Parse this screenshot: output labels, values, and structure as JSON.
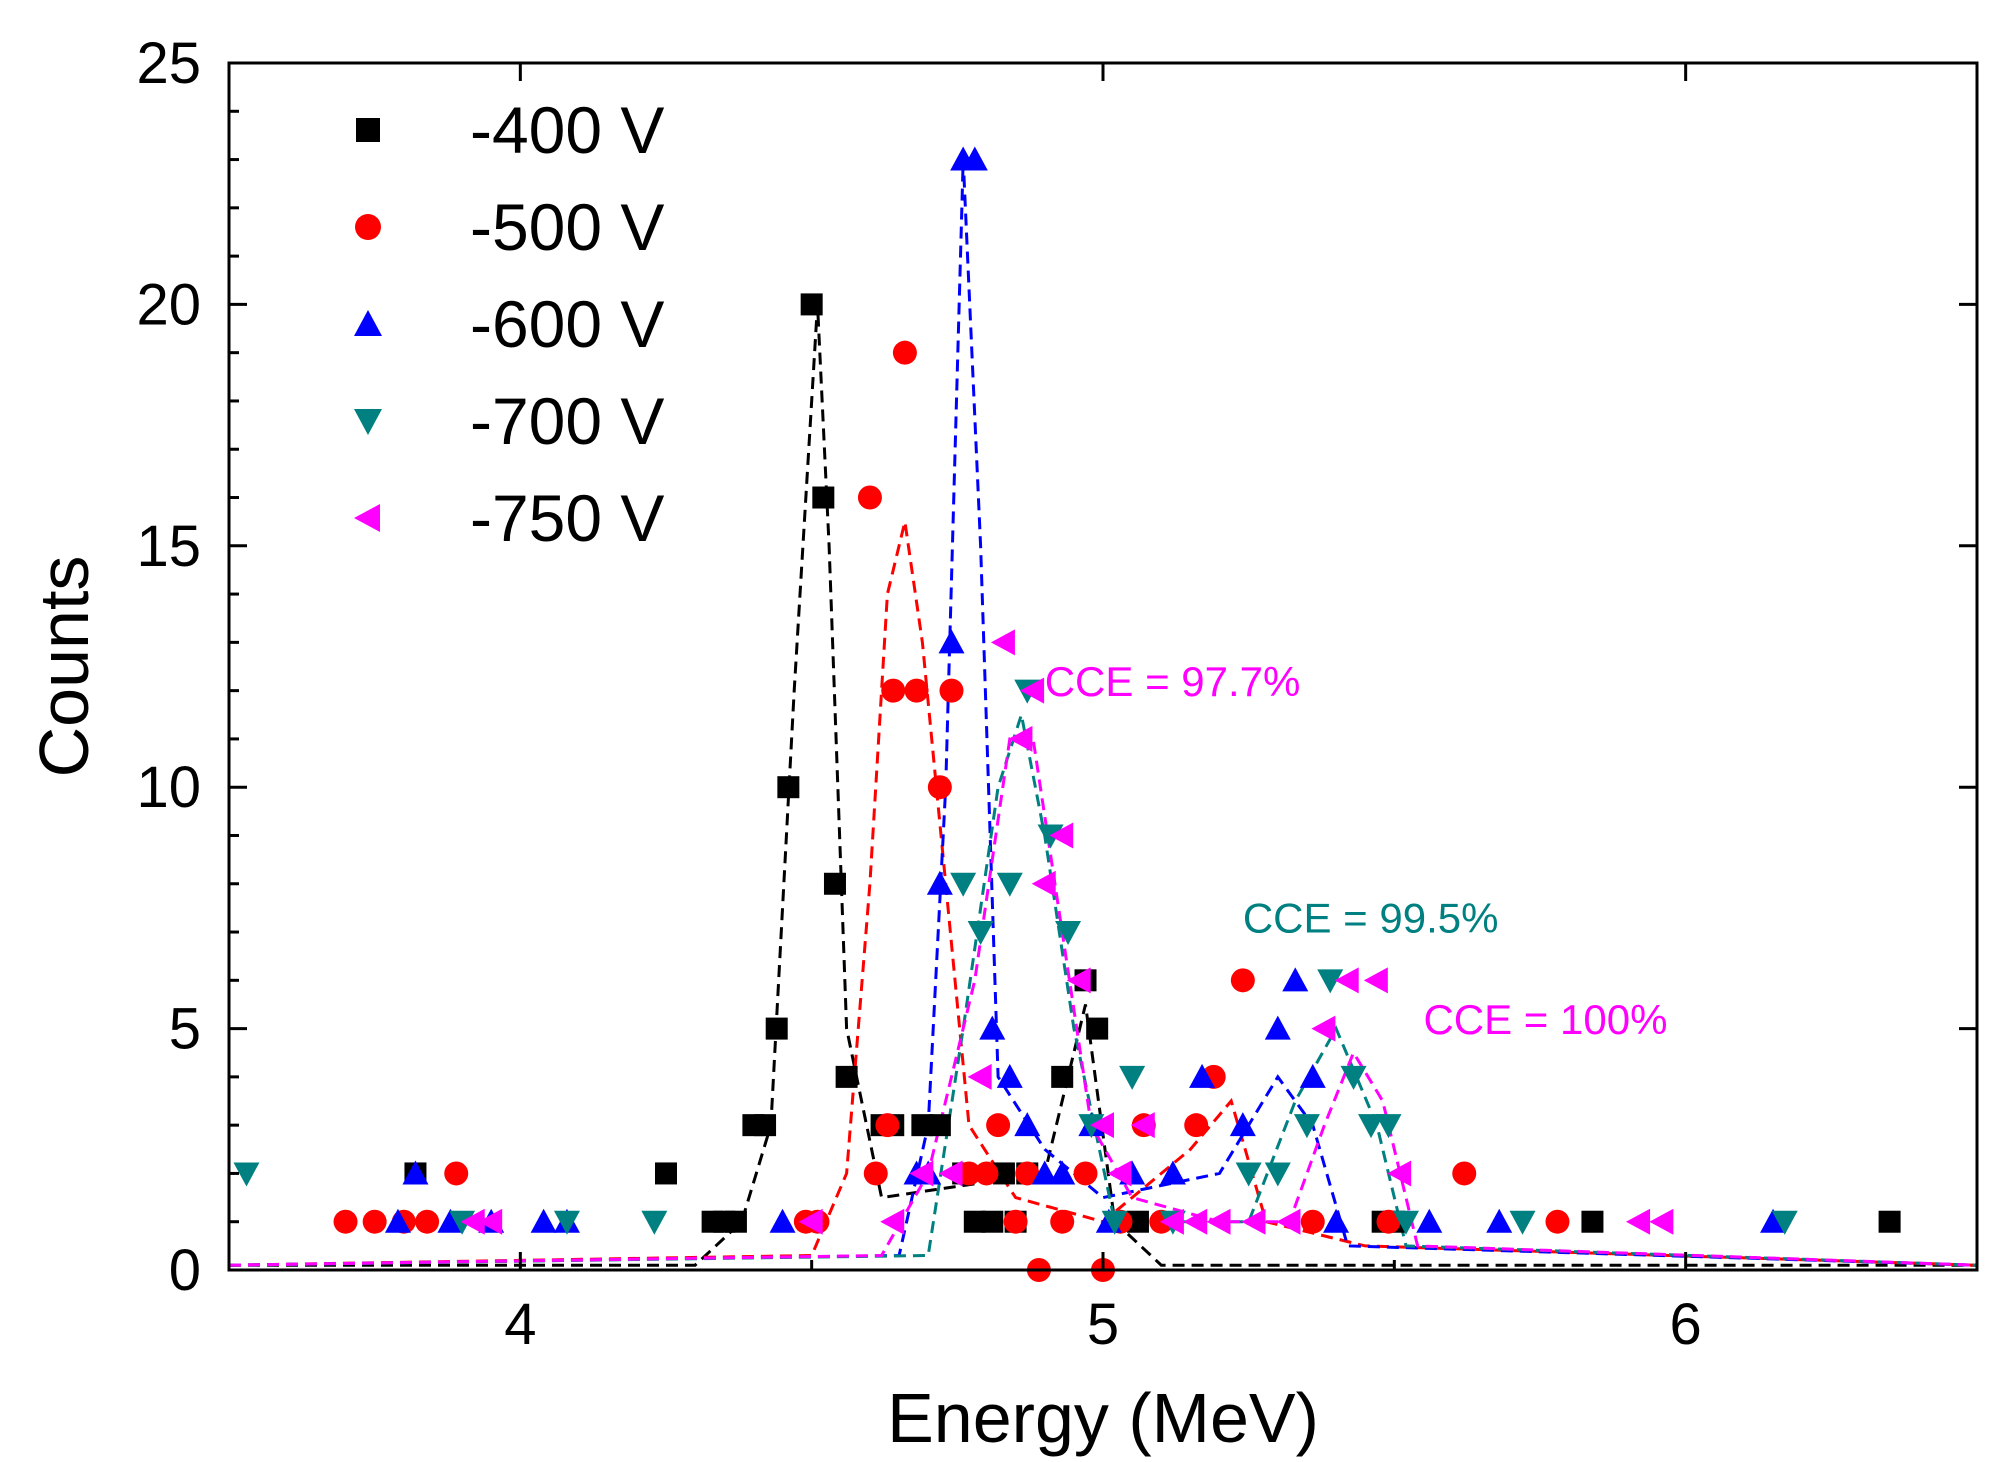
{
  "chart_data": {
    "type": "scatter",
    "title": "",
    "xlabel": "Energy (MeV)",
    "ylabel": "Counts",
    "xlim": [
      3.5,
      6.5
    ],
    "ylim": [
      0,
      25
    ],
    "xticks": [
      4,
      5,
      6
    ],
    "xtick_labels": [
      "4",
      "5",
      "6"
    ],
    "yticks": [
      0,
      5,
      10,
      15,
      20,
      25
    ],
    "ytick_labels": [
      "0",
      "5",
      "10",
      "15",
      "20",
      "25"
    ],
    "grid": false,
    "legend_position": "top-left",
    "series": [
      {
        "name": "-400 V",
        "color": "#000000",
        "marker": "square",
        "points": [
          [
            3.82,
            2
          ],
          [
            4.25,
            2
          ],
          [
            4.33,
            1
          ],
          [
            4.35,
            1
          ],
          [
            4.37,
            1
          ],
          [
            4.4,
            3
          ],
          [
            4.42,
            3
          ],
          [
            4.44,
            5
          ],
          [
            4.46,
            10
          ],
          [
            4.5,
            20
          ],
          [
            4.52,
            16
          ],
          [
            4.54,
            8
          ],
          [
            4.56,
            4
          ],
          [
            4.62,
            3
          ],
          [
            4.64,
            3
          ],
          [
            4.69,
            3
          ],
          [
            4.72,
            3
          ],
          [
            4.76,
            2
          ],
          [
            4.78,
            1
          ],
          [
            4.81,
            1
          ],
          [
            4.83,
            2
          ],
          [
            4.85,
            1
          ],
          [
            4.87,
            2
          ],
          [
            4.93,
            4
          ],
          [
            4.97,
            6
          ],
          [
            4.99,
            5
          ],
          [
            5.06,
            1
          ],
          [
            5.48,
            1
          ],
          [
            5.5,
            1
          ],
          [
            5.84,
            1
          ],
          [
            6.35,
            1
          ]
        ],
        "fit": [
          [
            3.5,
            0.1
          ],
          [
            4.3,
            0.1
          ],
          [
            4.38,
            1
          ],
          [
            4.43,
            3
          ],
          [
            4.47,
            12
          ],
          [
            4.51,
            20
          ],
          [
            4.53,
            15
          ],
          [
            4.56,
            5
          ],
          [
            4.62,
            1.5
          ],
          [
            4.9,
            2
          ],
          [
            4.97,
            5.5
          ],
          [
            5.02,
            1
          ],
          [
            5.1,
            0.1
          ],
          [
            6.5,
            0.1
          ]
        ]
      },
      {
        "name": "-500 V",
        "color": "#ff0000",
        "marker": "circle",
        "points": [
          [
            3.7,
            1
          ],
          [
            3.75,
            1
          ],
          [
            3.8,
            1
          ],
          [
            3.84,
            1
          ],
          [
            3.89,
            2
          ],
          [
            4.49,
            1
          ],
          [
            4.51,
            1
          ],
          [
            4.6,
            16
          ],
          [
            4.61,
            2
          ],
          [
            4.63,
            3
          ],
          [
            4.64,
            12
          ],
          [
            4.66,
            19
          ],
          [
            4.68,
            12
          ],
          [
            4.72,
            10
          ],
          [
            4.74,
            12
          ],
          [
            4.77,
            2
          ],
          [
            4.8,
            2
          ],
          [
            4.82,
            3
          ],
          [
            4.85,
            1
          ],
          [
            4.87,
            2
          ],
          [
            4.89,
            0
          ],
          [
            4.93,
            1
          ],
          [
            4.97,
            2
          ],
          [
            5.0,
            0
          ],
          [
            5.03,
            1
          ],
          [
            5.07,
            3
          ],
          [
            5.1,
            1
          ],
          [
            5.16,
            3
          ],
          [
            5.19,
            4
          ],
          [
            5.24,
            6
          ],
          [
            5.36,
            1
          ],
          [
            5.49,
            1
          ],
          [
            5.62,
            2
          ],
          [
            5.78,
            1
          ]
        ],
        "fit": [
          [
            3.5,
            0.1
          ],
          [
            4.5,
            0.3
          ],
          [
            4.56,
            2
          ],
          [
            4.6,
            8
          ],
          [
            4.63,
            14
          ],
          [
            4.66,
            15.5
          ],
          [
            4.69,
            13
          ],
          [
            4.73,
            8
          ],
          [
            4.77,
            3
          ],
          [
            4.85,
            1.5
          ],
          [
            5.0,
            1
          ],
          [
            5.15,
            2.5
          ],
          [
            5.22,
            3.5
          ],
          [
            5.28,
            1
          ],
          [
            5.45,
            0.5
          ],
          [
            6.5,
            0.1
          ]
        ]
      },
      {
        "name": "-600 V",
        "color": "#0000ff",
        "marker": "triangle-up",
        "points": [
          [
            3.79,
            1
          ],
          [
            3.82,
            2
          ],
          [
            3.88,
            1
          ],
          [
            3.95,
            1
          ],
          [
            4.04,
            1
          ],
          [
            4.08,
            1
          ],
          [
            4.45,
            1
          ],
          [
            4.68,
            2
          ],
          [
            4.7,
            2
          ],
          [
            4.72,
            8
          ],
          [
            4.74,
            13
          ],
          [
            4.76,
            23
          ],
          [
            4.78,
            23
          ],
          [
            4.81,
            5
          ],
          [
            4.84,
            4
          ],
          [
            4.87,
            3
          ],
          [
            4.9,
            2
          ],
          [
            4.93,
            2
          ],
          [
            4.98,
            3
          ],
          [
            5.01,
            1
          ],
          [
            5.05,
            2
          ],
          [
            5.12,
            2
          ],
          [
            5.17,
            4
          ],
          [
            5.24,
            3
          ],
          [
            5.3,
            5
          ],
          [
            5.33,
            6
          ],
          [
            5.36,
            4
          ],
          [
            5.4,
            1
          ],
          [
            5.56,
            1
          ],
          [
            5.68,
            1
          ],
          [
            6.15,
            1
          ]
        ],
        "fit": [
          [
            3.5,
            0.1
          ],
          [
            4.65,
            0.3
          ],
          [
            4.7,
            3
          ],
          [
            4.73,
            10
          ],
          [
            4.76,
            23
          ],
          [
            4.79,
            15
          ],
          [
            4.82,
            4
          ],
          [
            4.9,
            2.5
          ],
          [
            5.0,
            1.5
          ],
          [
            5.2,
            2
          ],
          [
            5.3,
            4
          ],
          [
            5.36,
            3
          ],
          [
            5.42,
            0.5
          ],
          [
            6.5,
            0.1
          ]
        ]
      },
      {
        "name": "-700 V",
        "color": "#008080",
        "marker": "triangle-down",
        "points": [
          [
            3.53,
            2
          ],
          [
            3.9,
            1
          ],
          [
            4.08,
            1
          ],
          [
            4.23,
            1
          ],
          [
            4.76,
            8
          ],
          [
            4.79,
            7
          ],
          [
            4.84,
            8
          ],
          [
            4.87,
            12
          ],
          [
            4.91,
            9
          ],
          [
            4.94,
            7
          ],
          [
            4.98,
            3
          ],
          [
            5.02,
            1
          ],
          [
            5.05,
            4
          ],
          [
            5.12,
            1
          ],
          [
            5.25,
            2
          ],
          [
            5.3,
            2
          ],
          [
            5.35,
            3
          ],
          [
            5.39,
            6
          ],
          [
            5.43,
            4
          ],
          [
            5.46,
            3
          ],
          [
            5.49,
            3
          ],
          [
            5.52,
            1
          ],
          [
            5.72,
            1
          ],
          [
            6.17,
            1
          ]
        ],
        "fit": [
          [
            3.5,
            0.1
          ],
          [
            4.7,
            0.3
          ],
          [
            4.76,
            5
          ],
          [
            4.82,
            10
          ],
          [
            4.86,
            11.5
          ],
          [
            4.9,
            9
          ],
          [
            4.95,
            5
          ],
          [
            5.02,
            1
          ],
          [
            5.25,
            1
          ],
          [
            5.33,
            3.5
          ],
          [
            5.4,
            5
          ],
          [
            5.47,
            3
          ],
          [
            5.52,
            0.5
          ],
          [
            6.5,
            0.1
          ]
        ]
      },
      {
        "name": "-750 V",
        "color": "#ff00ff",
        "marker": "triangle-left",
        "points": [
          [
            3.92,
            1
          ],
          [
            3.95,
            1
          ],
          [
            4.5,
            1
          ],
          [
            4.64,
            1
          ],
          [
            4.69,
            2
          ],
          [
            4.74,
            2
          ],
          [
            4.79,
            4
          ],
          [
            4.83,
            13
          ],
          [
            4.86,
            11
          ],
          [
            4.88,
            12
          ],
          [
            4.9,
            8
          ],
          [
            4.93,
            9
          ],
          [
            4.96,
            6
          ],
          [
            5.0,
            3
          ],
          [
            5.03,
            2
          ],
          [
            5.07,
            3
          ],
          [
            5.12,
            1
          ],
          [
            5.16,
            1
          ],
          [
            5.2,
            1
          ],
          [
            5.26,
            1
          ],
          [
            5.32,
            1
          ],
          [
            5.38,
            5
          ],
          [
            5.42,
            6
          ],
          [
            5.47,
            6
          ],
          [
            5.51,
            2
          ],
          [
            5.92,
            1
          ],
          [
            5.96,
            1
          ]
        ],
        "fit": [
          [
            3.5,
            0.1
          ],
          [
            4.62,
            0.3
          ],
          [
            4.7,
            2
          ],
          [
            4.78,
            6
          ],
          [
            4.84,
            11
          ],
          [
            4.88,
            11
          ],
          [
            4.93,
            7
          ],
          [
            4.98,
            3
          ],
          [
            5.05,
            1.5
          ],
          [
            5.2,
            1
          ],
          [
            5.32,
            1
          ],
          [
            5.38,
            3
          ],
          [
            5.43,
            4.5
          ],
          [
            5.48,
            3.5
          ],
          [
            5.54,
            0.5
          ],
          [
            6.5,
            0.1
          ]
        ]
      }
    ],
    "annotations": [
      {
        "text": "CCE = 97.7%",
        "x": 4.9,
        "y": 12.2,
        "color": "#ff00ff"
      },
      {
        "text": "CCE = 99.5%",
        "x": 5.24,
        "y": 7.3,
        "color": "#008080"
      },
      {
        "text": "CCE = 100%",
        "x": 5.55,
        "y": 5.2,
        "color": "#ff00ff"
      }
    ]
  }
}
